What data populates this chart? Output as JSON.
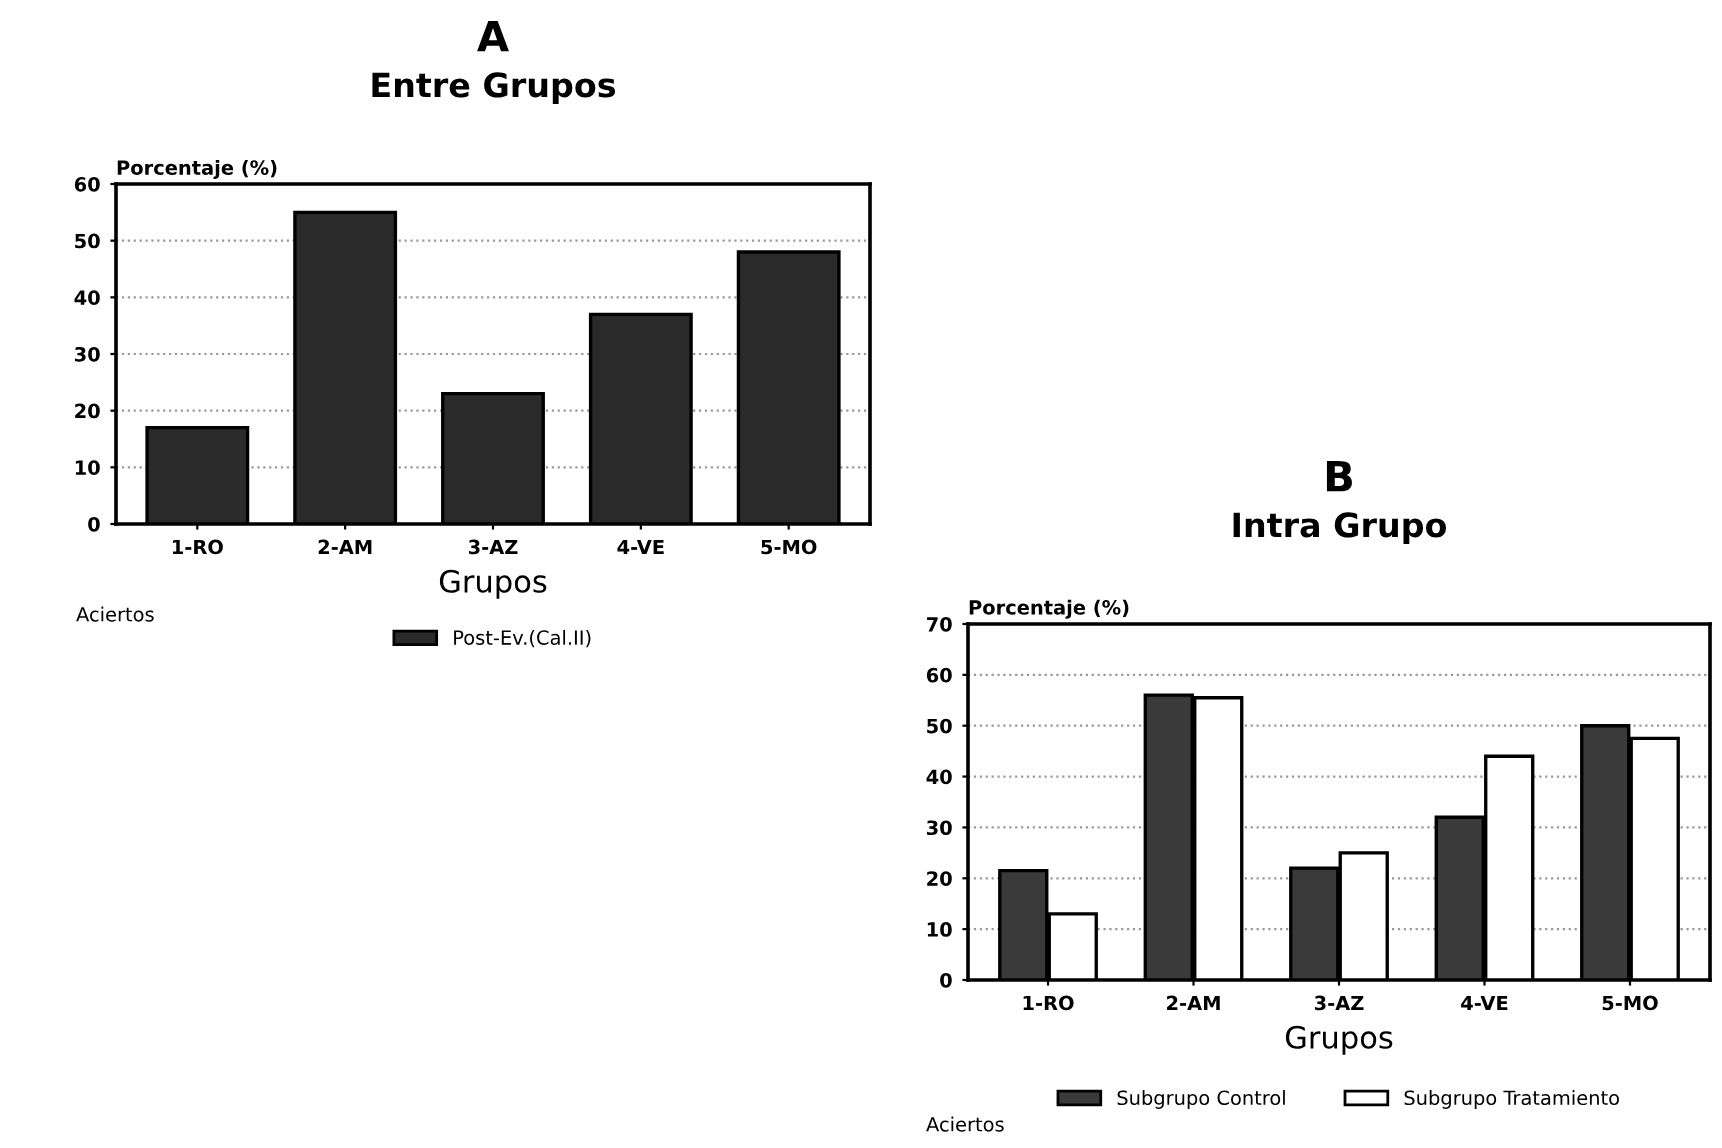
{
  "chart_data": [
    {
      "type": "bar",
      "title": "A",
      "subtitle": "Entre Grupos",
      "xlabel": "Grupos",
      "ylabel": "Porcentaje (%)",
      "categories": [
        "1-RO",
        "2-AM",
        "3-AZ",
        "4-VE",
        "5-MO"
      ],
      "series": [
        {
          "name": "Post-Ev.(Cal.II)",
          "color": "#2a2a2a",
          "values": [
            17,
            55,
            23,
            37,
            48
          ]
        }
      ],
      "ylim": [
        0,
        60
      ],
      "yticks": [
        0,
        10,
        20,
        30,
        40,
        50,
        60
      ],
      "grid": "y",
      "legend": "bottom",
      "annotations": [
        "Aciertos"
      ]
    },
    {
      "type": "bar",
      "title": "B",
      "subtitle": "Intra Grupo",
      "xlabel": "Grupos",
      "ylabel": "Porcentaje (%)",
      "categories": [
        "1-RO",
        "2-AM",
        "3-AZ",
        "4-VE",
        "5-MO"
      ],
      "series": [
        {
          "name": "Subgrupo Control",
          "color": "#3a3a3a",
          "values": [
            21.5,
            56,
            22,
            32,
            50
          ]
        },
        {
          "name": "Subgrupo Tratamiento",
          "color": "#ffffff",
          "values": [
            13,
            55.5,
            25,
            44,
            47.5
          ]
        }
      ],
      "ylim": [
        0,
        70
      ],
      "yticks": [
        0,
        10,
        20,
        30,
        40,
        50,
        60,
        70
      ],
      "grid": "y",
      "legend": "bottom",
      "annotations": [
        "Aciertos"
      ]
    }
  ]
}
